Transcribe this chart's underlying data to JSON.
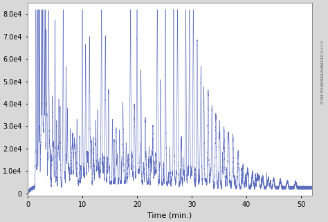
{
  "title": "",
  "xlabel": "Time (min.)",
  "ylabel": "",
  "xlim": [
    0,
    52
  ],
  "ylim": [
    -1000,
    85000
  ],
  "yticks": [
    0,
    10000,
    20000,
    30000,
    40000,
    50000,
    60000,
    70000,
    80000
  ],
  "ytick_labels": [
    "0",
    "1.0e4",
    "2.0e4",
    "3.0e4",
    "4.0e4",
    "5.0e4",
    "6.0e4",
    "7.0e4",
    "8.0e4"
  ],
  "xticks": [
    0,
    10,
    20,
    30,
    40,
    50
  ],
  "line_color": "#5566bb",
  "fig_facecolor": "#d8d8d8",
  "ax_facecolor": "#ffffff",
  "right_label": "% 1= C:\\CHEMSTATION\\DATA\\2-881.D",
  "baseline_level": 2500,
  "seed": 12
}
